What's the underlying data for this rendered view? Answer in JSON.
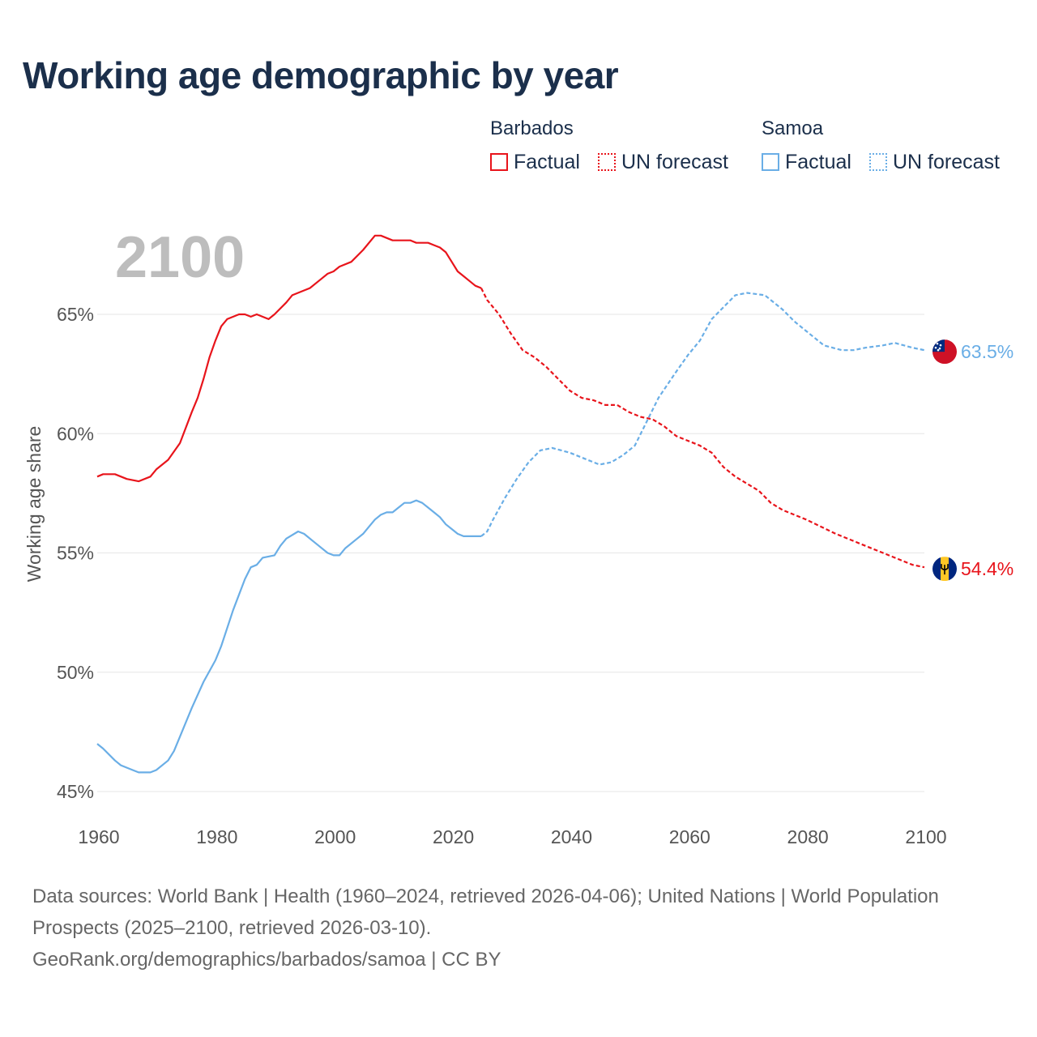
{
  "title": "Working age demographic by year",
  "legend": {
    "groups": [
      {
        "name": "Barbados",
        "color": "#e8141b",
        "factual_label": "Factual",
        "forecast_label": "UN forecast"
      },
      {
        "name": "Samoa",
        "color": "#6aaee6",
        "factual_label": "Factual",
        "forecast_label": "UN forecast"
      }
    ]
  },
  "footer": {
    "line1": "Data sources: World Bank | Health (1960–2024, retrieved 2026-04-06); United Nations | World Population Prospects (2025–2100, retrieved 2026-03-10).",
    "line2": "GeoRank.org/demographics/barbados/samoa | CC BY"
  },
  "chart_data": {
    "type": "line",
    "year_label": "2100",
    "ylabel": "Working age share",
    "xlim": [
      1960,
      2100
    ],
    "ylim": [
      45,
      69
    ],
    "x_ticks": [
      1960,
      1980,
      2000,
      2020,
      2040,
      2060,
      2080,
      2100
    ],
    "x_tick_labels": [
      "1960",
      "1980",
      "2000",
      "2020",
      "2040",
      "2060",
      "2080",
      "2100"
    ],
    "y_ticks": [
      45,
      50,
      55,
      60,
      65
    ],
    "y_tick_labels": [
      "45%",
      "50%",
      "55%",
      "60%",
      "65%"
    ],
    "forecast_start": 2025,
    "series": [
      {
        "name": "Barbados",
        "color": "#e8141b",
        "end_label": "54.4%",
        "flag": "barbados-flag-icon",
        "points": [
          [
            1960,
            58.2
          ],
          [
            1961,
            58.3
          ],
          [
            1963,
            58.3
          ],
          [
            1965,
            58.1
          ],
          [
            1967,
            58.0
          ],
          [
            1969,
            58.2
          ],
          [
            1970,
            58.5
          ],
          [
            1972,
            58.9
          ],
          [
            1974,
            59.6
          ],
          [
            1976,
            60.9
          ],
          [
            1977,
            61.5
          ],
          [
            1978,
            62.3
          ],
          [
            1979,
            63.2
          ],
          [
            1980,
            63.9
          ],
          [
            1981,
            64.5
          ],
          [
            1982,
            64.8
          ],
          [
            1984,
            65.0
          ],
          [
            1985,
            65.0
          ],
          [
            1986,
            64.9
          ],
          [
            1987,
            65.0
          ],
          [
            1989,
            64.8
          ],
          [
            1990,
            65.0
          ],
          [
            1992,
            65.5
          ],
          [
            1993,
            65.8
          ],
          [
            1995,
            66.0
          ],
          [
            1996,
            66.1
          ],
          [
            1998,
            66.5
          ],
          [
            1999,
            66.7
          ],
          [
            2000,
            66.8
          ],
          [
            2001,
            67.0
          ],
          [
            2003,
            67.2
          ],
          [
            2005,
            67.7
          ],
          [
            2007,
            68.3
          ],
          [
            2008,
            68.3
          ],
          [
            2010,
            68.1
          ],
          [
            2013,
            68.1
          ],
          [
            2014,
            68.0
          ],
          [
            2016,
            68.0
          ],
          [
            2017,
            67.9
          ],
          [
            2018,
            67.8
          ],
          [
            2019,
            67.6
          ],
          [
            2020,
            67.2
          ],
          [
            2021,
            66.8
          ],
          [
            2022,
            66.6
          ],
          [
            2023,
            66.4
          ],
          [
            2024,
            66.2
          ],
          [
            2025,
            66.1
          ],
          [
            2026,
            65.6
          ],
          [
            2028,
            65.0
          ],
          [
            2030,
            64.2
          ],
          [
            2032,
            63.5
          ],
          [
            2034,
            63.2
          ],
          [
            2036,
            62.8
          ],
          [
            2038,
            62.3
          ],
          [
            2040,
            61.8
          ],
          [
            2042,
            61.5
          ],
          [
            2044,
            61.4
          ],
          [
            2046,
            61.2
          ],
          [
            2048,
            61.2
          ],
          [
            2050,
            60.9
          ],
          [
            2052,
            60.7
          ],
          [
            2054,
            60.6
          ],
          [
            2056,
            60.3
          ],
          [
            2058,
            59.9
          ],
          [
            2060,
            59.7
          ],
          [
            2062,
            59.5
          ],
          [
            2064,
            59.2
          ],
          [
            2066,
            58.6
          ],
          [
            2068,
            58.2
          ],
          [
            2070,
            57.9
          ],
          [
            2072,
            57.6
          ],
          [
            2074,
            57.1
          ],
          [
            2076,
            56.8
          ],
          [
            2080,
            56.4
          ],
          [
            2085,
            55.8
          ],
          [
            2090,
            55.3
          ],
          [
            2095,
            54.8
          ],
          [
            2098,
            54.5
          ],
          [
            2100,
            54.4
          ]
        ]
      },
      {
        "name": "Samoa",
        "color": "#6aaee6",
        "end_label": "63.5%",
        "flag": "samoa-flag-icon",
        "points": [
          [
            1960,
            47.0
          ],
          [
            1961,
            46.8
          ],
          [
            1963,
            46.3
          ],
          [
            1964,
            46.1
          ],
          [
            1966,
            45.9
          ],
          [
            1967,
            45.8
          ],
          [
            1968,
            45.8
          ],
          [
            1969,
            45.8
          ],
          [
            1970,
            45.9
          ],
          [
            1972,
            46.3
          ],
          [
            1973,
            46.7
          ],
          [
            1974,
            47.3
          ],
          [
            1976,
            48.5
          ],
          [
            1978,
            49.6
          ],
          [
            1980,
            50.5
          ],
          [
            1981,
            51.1
          ],
          [
            1983,
            52.6
          ],
          [
            1985,
            53.9
          ],
          [
            1986,
            54.4
          ],
          [
            1987,
            54.5
          ],
          [
            1988,
            54.8
          ],
          [
            1990,
            54.9
          ],
          [
            1991,
            55.3
          ],
          [
            1992,
            55.6
          ],
          [
            1994,
            55.9
          ],
          [
            1995,
            55.8
          ],
          [
            1997,
            55.4
          ],
          [
            1999,
            55.0
          ],
          [
            2000,
            54.9
          ],
          [
            2001,
            54.9
          ],
          [
            2002,
            55.2
          ],
          [
            2004,
            55.6
          ],
          [
            2005,
            55.8
          ],
          [
            2006,
            56.1
          ],
          [
            2007,
            56.4
          ],
          [
            2008,
            56.6
          ],
          [
            2009,
            56.7
          ],
          [
            2010,
            56.7
          ],
          [
            2011,
            56.9
          ],
          [
            2012,
            57.1
          ],
          [
            2013,
            57.1
          ],
          [
            2014,
            57.2
          ],
          [
            2015,
            57.1
          ],
          [
            2016,
            56.9
          ],
          [
            2017,
            56.7
          ],
          [
            2018,
            56.5
          ],
          [
            2019,
            56.2
          ],
          [
            2020,
            56.0
          ],
          [
            2021,
            55.8
          ],
          [
            2022,
            55.7
          ],
          [
            2023,
            55.7
          ],
          [
            2025,
            55.7
          ],
          [
            2026,
            55.9
          ],
          [
            2027,
            56.4
          ],
          [
            2029,
            57.3
          ],
          [
            2031,
            58.1
          ],
          [
            2033,
            58.8
          ],
          [
            2035,
            59.3
          ],
          [
            2037,
            59.4
          ],
          [
            2040,
            59.2
          ],
          [
            2042,
            59.0
          ],
          [
            2045,
            58.7
          ],
          [
            2047,
            58.8
          ],
          [
            2049,
            59.1
          ],
          [
            2051,
            59.5
          ],
          [
            2053,
            60.5
          ],
          [
            2055,
            61.5
          ],
          [
            2058,
            62.6
          ],
          [
            2060,
            63.3
          ],
          [
            2062,
            63.9
          ],
          [
            2064,
            64.8
          ],
          [
            2066,
            65.3
          ],
          [
            2068,
            65.8
          ],
          [
            2070,
            65.9
          ],
          [
            2073,
            65.8
          ],
          [
            2076,
            65.2
          ],
          [
            2078,
            64.7
          ],
          [
            2080,
            64.3
          ],
          [
            2083,
            63.7
          ],
          [
            2086,
            63.5
          ],
          [
            2088,
            63.5
          ],
          [
            2090,
            63.6
          ],
          [
            2093,
            63.7
          ],
          [
            2095,
            63.8
          ],
          [
            2098,
            63.6
          ],
          [
            2100,
            63.5
          ]
        ]
      }
    ]
  }
}
